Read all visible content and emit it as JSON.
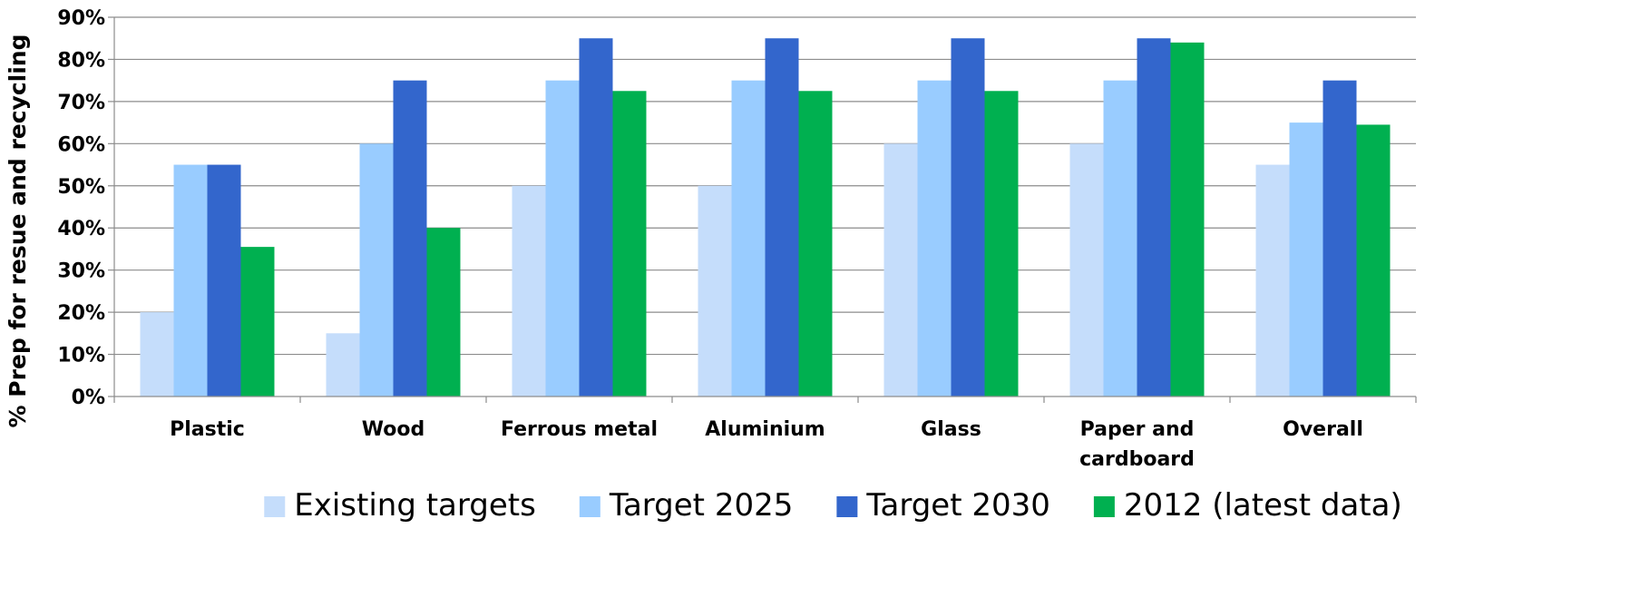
{
  "chart_data": {
    "type": "bar",
    "title": "",
    "xlabel": "",
    "ylabel": "% Prep for resue and recycling",
    "ylim": [
      0,
      90
    ],
    "y_ticks": [
      "0%",
      "10%",
      "20%",
      "30%",
      "40%",
      "50%",
      "60%",
      "70%",
      "80%",
      "90%"
    ],
    "grid": true,
    "legend_position": "bottom",
    "categories": [
      [
        "Plastic"
      ],
      [
        "Wood"
      ],
      [
        "Ferrous metal"
      ],
      [
        "Aluminium"
      ],
      [
        "Glass"
      ],
      [
        "Paper and",
        "cardboard"
      ],
      [
        "Overall"
      ]
    ],
    "series": [
      {
        "name": "Existing targets",
        "color": "#C5DDFB",
        "values": [
          20,
          15,
          50,
          50,
          60,
          60,
          55
        ]
      },
      {
        "name": "Target 2025",
        "color": "#99CCFF",
        "values": [
          55,
          60,
          75,
          75,
          75,
          75,
          65
        ]
      },
      {
        "name": "Target 2030",
        "color": "#3366CC",
        "values": [
          55,
          75,
          85,
          85,
          85,
          85,
          75
        ]
      },
      {
        "name": "2012 (latest data)",
        "color": "#00B050",
        "values": [
          35.5,
          40,
          72.5,
          72.5,
          72.5,
          84,
          64.5
        ]
      }
    ]
  }
}
